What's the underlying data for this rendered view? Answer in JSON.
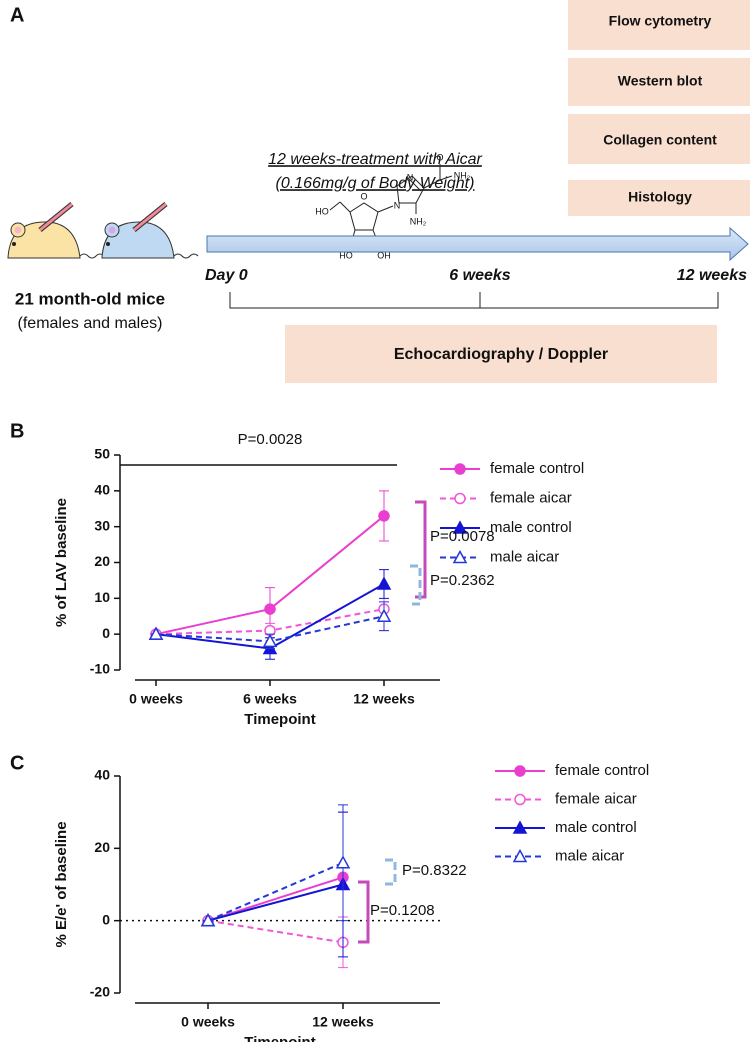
{
  "panel_a": {
    "label": "A",
    "treatment": "12 weeks-treatment with Aicar",
    "dose": "(0.166mg/g of Body Weight)",
    "assays": [
      "Flow cytometry",
      "Western blot",
      "Collagen content",
      "Histology"
    ],
    "timeline": [
      "Day 0",
      "6 weeks",
      "12 weeks"
    ],
    "mice_title": "21 month-old mice",
    "mice_subtitle": "(females and males)",
    "echo": "Echocardiography / Doppler",
    "molecule_atoms": [
      "O",
      "NH₂",
      "N",
      "N",
      "NH₂",
      "O",
      "HO",
      "HO",
      "OH"
    ]
  },
  "chart_data": [
    {
      "type": "line",
      "panel_label": "B",
      "categories": [
        "0 weeks",
        "6 weeks",
        "12 weeks"
      ],
      "x_label": "Timepoint",
      "y_label": "% of LAV baseline",
      "ylim": [
        -10,
        50
      ],
      "yticks": [
        -10,
        0,
        10,
        20,
        30,
        40,
        50
      ],
      "series": [
        {
          "name": "female control",
          "color": "#e83fd1",
          "marker": "circle",
          "filled": true,
          "dashed": false,
          "values": [
            0,
            7,
            33
          ],
          "errors": [
            0,
            6,
            7
          ]
        },
        {
          "name": "female aicar",
          "color": "#f056d8",
          "marker": "circle",
          "filled": false,
          "dashed": true,
          "values": [
            0,
            1,
            7
          ],
          "errors": [
            0,
            2,
            6
          ]
        },
        {
          "name": "male control",
          "color": "#1414d4",
          "marker": "triangle",
          "filled": true,
          "dashed": false,
          "values": [
            0,
            -4,
            14
          ],
          "errors": [
            0,
            3,
            4
          ]
        },
        {
          "name": "male aicar",
          "color": "#2438d8",
          "marker": "triangle",
          "filled": false,
          "dashed": true,
          "values": [
            0,
            -2,
            5
          ],
          "errors": [
            0,
            2,
            4
          ]
        }
      ],
      "annotations": [
        "P=0.0028",
        "P=0.0078",
        "P=0.2362"
      ]
    },
    {
      "type": "line",
      "panel_label": "C",
      "categories": [
        "0 weeks",
        "12 weeks"
      ],
      "x_label": "Timepoint",
      "y_label": "% E/e' of baseline",
      "ylim": [
        -20,
        40
      ],
      "yticks": [
        -20,
        0,
        20,
        40
      ],
      "reference_line": 0,
      "series": [
        {
          "name": "female control",
          "color": "#e83fd1",
          "marker": "circle",
          "filled": true,
          "dashed": false,
          "values": [
            0,
            12
          ],
          "errors": [
            0,
            18
          ]
        },
        {
          "name": "female aicar",
          "color": "#f056d8",
          "marker": "circle",
          "filled": false,
          "dashed": true,
          "values": [
            0,
            -6
          ],
          "errors": [
            0,
            7
          ]
        },
        {
          "name": "male control",
          "color": "#1414d4",
          "marker": "triangle",
          "filled": true,
          "dashed": false,
          "values": [
            0,
            10
          ],
          "errors": [
            0,
            20
          ]
        },
        {
          "name": "male aicar",
          "color": "#2438d8",
          "marker": "triangle",
          "filled": false,
          "dashed": true,
          "values": [
            0,
            16
          ],
          "errors": [
            0,
            16
          ]
        }
      ],
      "annotations": [
        "P=0.8322",
        "P=0.1208"
      ]
    }
  ]
}
